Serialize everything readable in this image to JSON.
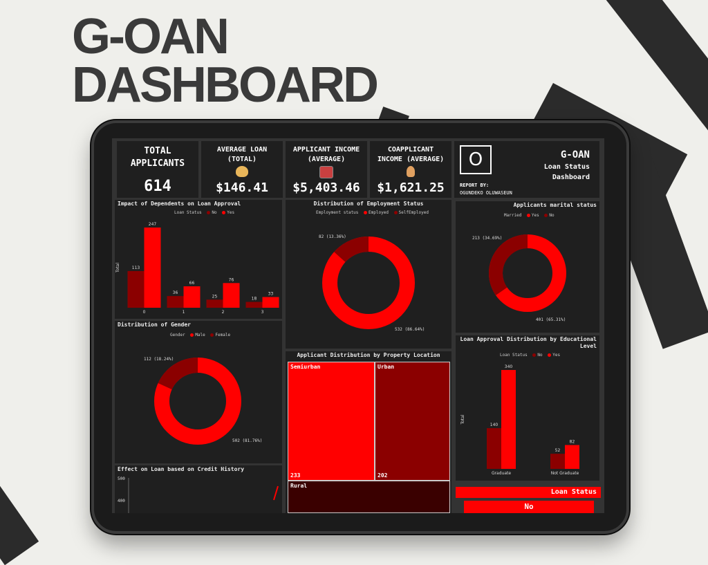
{
  "hero": {
    "line1": "G-OAN",
    "line2": "DASHBOARD"
  },
  "kpis": {
    "total_applicants": {
      "label_line1": "TOTAL",
      "label_line2": "APPLICANTS",
      "value": "614"
    },
    "average_loan": {
      "label_line1": "AVERAGE LOAN",
      "label_line2": "(TOTAL)",
      "value": "$146.41",
      "icon": "money-bag-icon"
    },
    "applicant_income": {
      "label_line1": "APPLICANT INCOME",
      "label_line2": "(AVERAGE)",
      "value": "$5,403.46",
      "icon": "cash-register-icon"
    },
    "coapplicant_income": {
      "label_line1": "COAPPLICANT",
      "label_line2": "INCOME (AVERAGE)",
      "value": "$1,621.25",
      "icon": "person-icon"
    }
  },
  "brand": {
    "logo_letter": "O",
    "title": "G-OAN",
    "subtitle_line1": "Loan Status",
    "subtitle_line2": "Dashboard",
    "report_by_label": "REPORT BY:",
    "report_by_name": "OGUNDEKO OLUWASEUN"
  },
  "dependents": {
    "title": "Impact of Dependents on Loan Approval",
    "legend_label": "Loan Status",
    "legend_no": "No",
    "legend_yes": "Yes",
    "ylabel": "Total",
    "categories": [
      "0",
      "1",
      "2",
      "3"
    ],
    "no_values": [
      113,
      36,
      25,
      18
    ],
    "yes_values": [
      247,
      66,
      76,
      33
    ]
  },
  "employment": {
    "title": "Distribution of Employment Status",
    "legend_label": "Employment status",
    "legend_a": "Employed",
    "legend_b": "SelfEmployed",
    "small_label": "82 (13.36%)",
    "large_label": "532 (86.64%)",
    "small_fraction": 0.1336
  },
  "marital": {
    "title": "Applicants marital status",
    "legend_label": "Married",
    "legend_a": "Yes",
    "legend_b": "No",
    "small_label": "213 (34.69%)",
    "large_label": "401 (65.31%)",
    "small_fraction": 0.3469
  },
  "gender": {
    "title": "Distribution of Gender",
    "legend_label": "Gender",
    "legend_a": "Male",
    "legend_b": "Female",
    "small_label": "112 (18.24%)",
    "large_label": "502 (81.76%)",
    "small_fraction": 0.1824
  },
  "property": {
    "title": "Applicant Distribution by Property Location",
    "semiurban": {
      "label": "Semiurban",
      "value": "233"
    },
    "urban": {
      "label": "Urban",
      "value": "202"
    },
    "rural": {
      "label": "Rural"
    }
  },
  "education": {
    "title_line1": "Loan Approval Distribution by Educational",
    "title_line2": "Level",
    "legend_label": "Loan Status",
    "legend_no": "No",
    "legend_yes": "Yes",
    "ylabel": "Total",
    "categories": [
      "Graduate",
      "Not Graduate"
    ],
    "no_values": [
      140,
      52
    ],
    "yes_values": [
      340,
      82
    ]
  },
  "credit": {
    "title": "Effect on Loan based on Credit History",
    "tick_top": "500",
    "tick_mid": "400"
  },
  "loan_status": {
    "header": "Loan Status",
    "value": "No"
  },
  "colors": {
    "red": "#ff0000",
    "dark_red": "#8b0000",
    "tile_bg": "#1f1f1f"
  }
}
